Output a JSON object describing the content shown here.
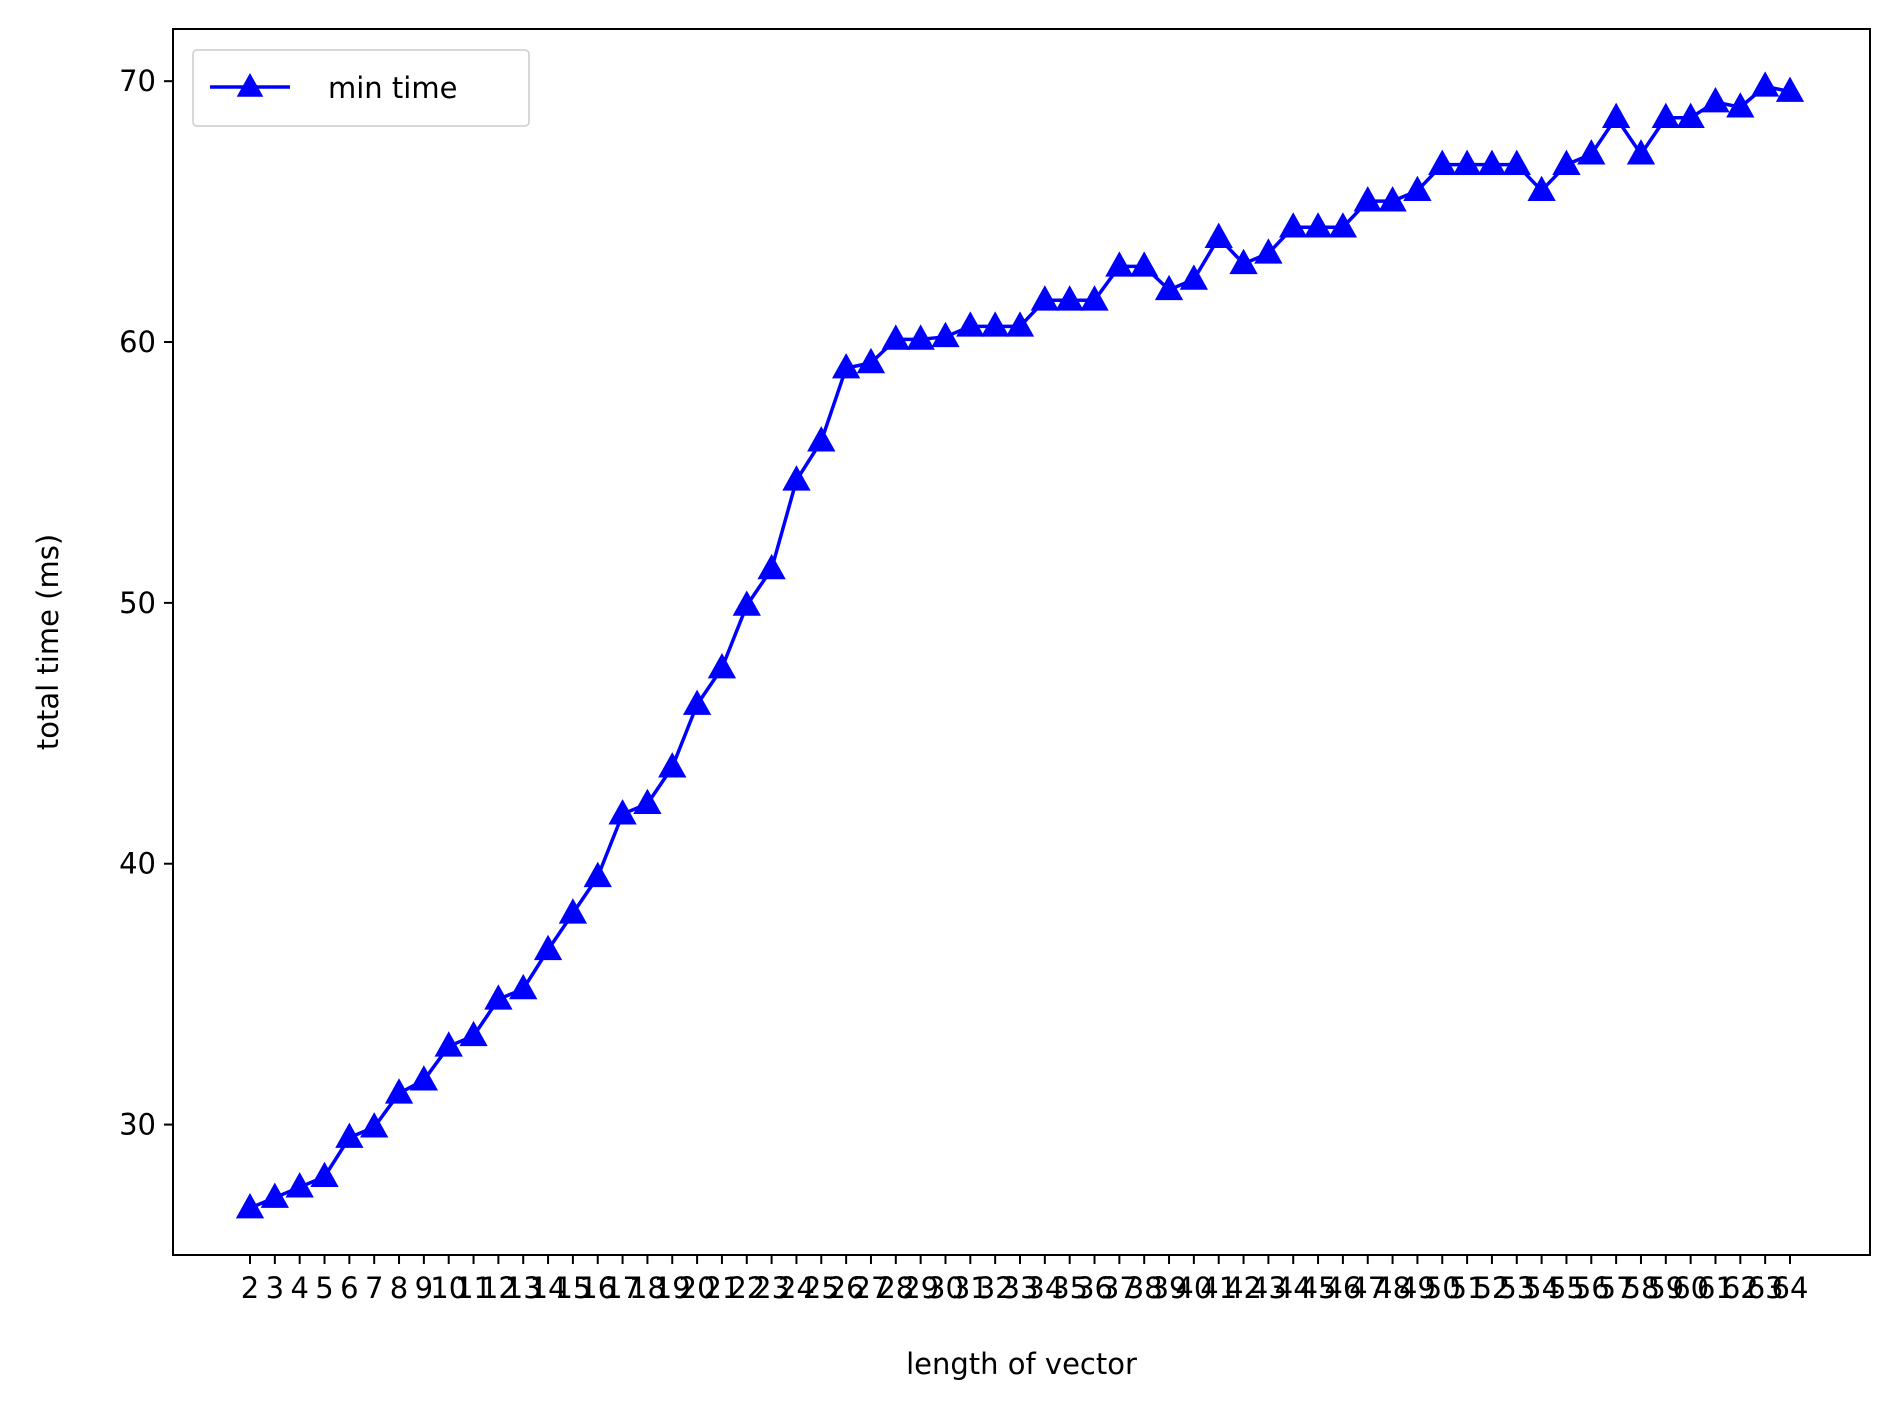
{
  "chart_data": {
    "type": "line",
    "title": "",
    "xlabel": "length of vector",
    "ylabel": "total time (ms)",
    "x": [
      2,
      3,
      4,
      5,
      6,
      7,
      8,
      9,
      10,
      11,
      12,
      13,
      14,
      15,
      16,
      17,
      18,
      19,
      20,
      21,
      22,
      23,
      24,
      25,
      26,
      27,
      28,
      29,
      30,
      31,
      32,
      33,
      34,
      35,
      36,
      37,
      38,
      39,
      40,
      41,
      42,
      43,
      44,
      45,
      46,
      47,
      48,
      49,
      50,
      51,
      52,
      53,
      54,
      55,
      56,
      57,
      58,
      59,
      60,
      61,
      62,
      63,
      64
    ],
    "xtick_labels": [
      "2",
      "3",
      "4",
      "5",
      "6",
      "7",
      "8",
      "9",
      "10",
      "11",
      "12",
      "13",
      "14",
      "15",
      "16",
      "17",
      "18",
      "19",
      "20",
      "21",
      "22",
      "23",
      "24",
      "25",
      "26",
      "27",
      "28",
      "29",
      "30",
      "31",
      "32",
      "33",
      "34",
      "35",
      "36",
      "37",
      "38",
      "39",
      "40",
      "41",
      "42",
      "43",
      "44",
      "45",
      "46",
      "47",
      "48",
      "49",
      "50",
      "51",
      "52",
      "53",
      "54",
      "55",
      "56",
      "57",
      "58",
      "59",
      "60",
      "61",
      "62",
      "63",
      "64"
    ],
    "yticks": [
      30,
      40,
      50,
      60,
      70
    ],
    "ylim": [
      25,
      72
    ],
    "grid": false,
    "legend_position": "upper-left",
    "series": [
      {
        "name": "min time",
        "color": "#0000ff",
        "marker": "triangle-up",
        "values": [
          26.8,
          27.2,
          27.6,
          28.0,
          29.5,
          29.9,
          31.2,
          31.7,
          33.0,
          33.4,
          34.8,
          35.2,
          36.7,
          38.1,
          39.5,
          41.9,
          42.3,
          43.7,
          46.1,
          47.5,
          49.9,
          51.3,
          54.7,
          56.2,
          59.0,
          59.2,
          60.1,
          60.1,
          60.2,
          60.6,
          60.6,
          60.6,
          61.6,
          61.6,
          61.6,
          62.9,
          62.9,
          62.0,
          62.4,
          64.0,
          63.0,
          63.4,
          64.4,
          64.4,
          64.4,
          65.4,
          65.4,
          65.8,
          66.8,
          66.8,
          66.8,
          66.8,
          65.8,
          66.8,
          67.2,
          68.6,
          67.2,
          68.6,
          68.6,
          69.2,
          69.0,
          69.8,
          69.6
        ]
      }
    ]
  }
}
